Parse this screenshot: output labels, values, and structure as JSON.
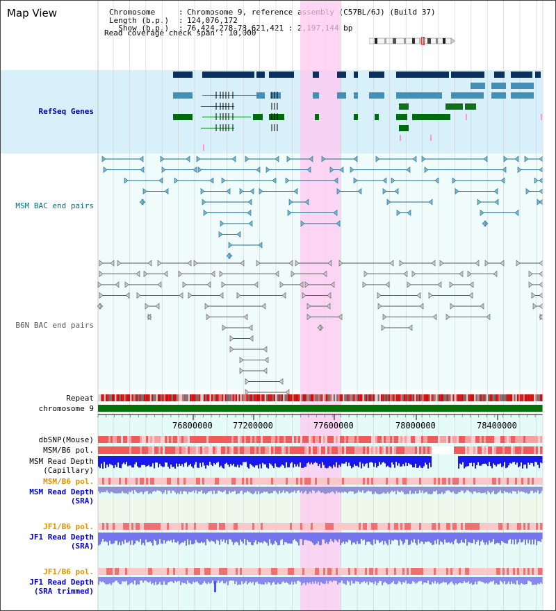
{
  "header": {
    "title": "Map View",
    "info_keys": "Chromosome\nLength (b.p.)\n  Show (b.p.)",
    "info_colons": ":\n:\n:",
    "info_values": "Chromosome 9, reference assembly (C57BL/6J) (Build 37)\n124,076,172\n76,424,278-78,621,421 : 2,197,144 bp",
    "coverage_line": "Read coverage check span : 10,000"
  },
  "tracks": {
    "refseq": "RefSeq Genes",
    "msm_bac": "MSM BAC end pairs",
    "b6n_bac": "B6N BAC end pairs",
    "repeat": "Repeat",
    "chromosome": "chromosome 9",
    "dbsnp": "dbSNP(Mouse)",
    "msm_pol1": "MSM/B6 pol.",
    "msm_depth1_a": "MSM Read Depth",
    "msm_depth1_b": "(Capillary)",
    "msm_pol2": "MSM/B6 pol.",
    "msm_depth2_a": "MSM Read Depth",
    "msm_depth2_b": "(SRA)",
    "jf1_pol1": "JF1/B6 pol.",
    "jf1_depth1_a": "JF1 Read Depth",
    "jf1_depth1_b": "(SRA)",
    "jf1_pol2": "JF1/B6 pol.",
    "jf1_depth2_a": "JF1 Read Depth",
    "jf1_depth2_b": "(SRA trimmed)"
  },
  "axis": {
    "ticks": [
      "76800000",
      "77200000",
      "77600000",
      "78000000",
      "78400000"
    ]
  },
  "colors": {
    "refseq_label": "#0000aa",
    "msm_label": "#007080",
    "b6n_label": "#555555",
    "pol_orange": "#e09000",
    "depth_blue": "#0000cc",
    "highlight": "#ffc8f0"
  }
}
